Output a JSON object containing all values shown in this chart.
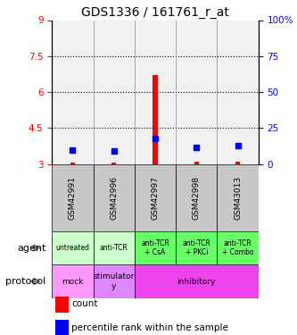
{
  "title": "GDS1336 / 161761_r_at",
  "samples": [
    "GSM42991",
    "GSM42996",
    "GSM42997",
    "GSM42998",
    "GSM43013"
  ],
  "red_values": [
    3.05,
    3.05,
    6.7,
    3.12,
    3.1
  ],
  "red_base": [
    3.0,
    3.0,
    3.0,
    3.0,
    3.0
  ],
  "blue_values": [
    3.58,
    3.55,
    4.08,
    3.68,
    3.78
  ],
  "ylim": [
    3.0,
    9.0
  ],
  "y2lim": [
    0,
    100
  ],
  "yticks": [
    3.0,
    4.5,
    6.0,
    7.5,
    9.0
  ],
  "ytick_labels": [
    "3",
    "4.5",
    "6",
    "7.5",
    "9"
  ],
  "y2ticks": [
    0,
    25,
    50,
    75,
    100
  ],
  "y2tick_labels": [
    "0",
    "25",
    "50",
    "75",
    "100%"
  ],
  "gridlines": [
    4.5,
    6.0,
    7.5
  ],
  "agent_labels": [
    "untreated",
    "anti-TCR",
    "anti-TCR\n+ CsA",
    "anti-TCR\n+ PKCi",
    "anti-TCR\n+ Combo"
  ],
  "agent_colors": [
    "#ccffcc",
    "#ccffcc",
    "#66ff66",
    "#66ff66",
    "#66ff66"
  ],
  "protocol_spans": [
    {
      "label": "mock",
      "start": 0,
      "end": 1,
      "color": "#ff99ff"
    },
    {
      "label": "stimulator\ny",
      "start": 1,
      "end": 2,
      "color": "#dd88ff"
    },
    {
      "label": "inhibitory",
      "start": 2,
      "end": 5,
      "color": "#ee44ee"
    }
  ],
  "legend_red": "count",
  "legend_blue": "percentile rank within the sample",
  "sample_bg_color": "#c8c8c8",
  "title_fontsize": 10,
  "tick_fontsize": 7.5,
  "bar_width": 0.12
}
